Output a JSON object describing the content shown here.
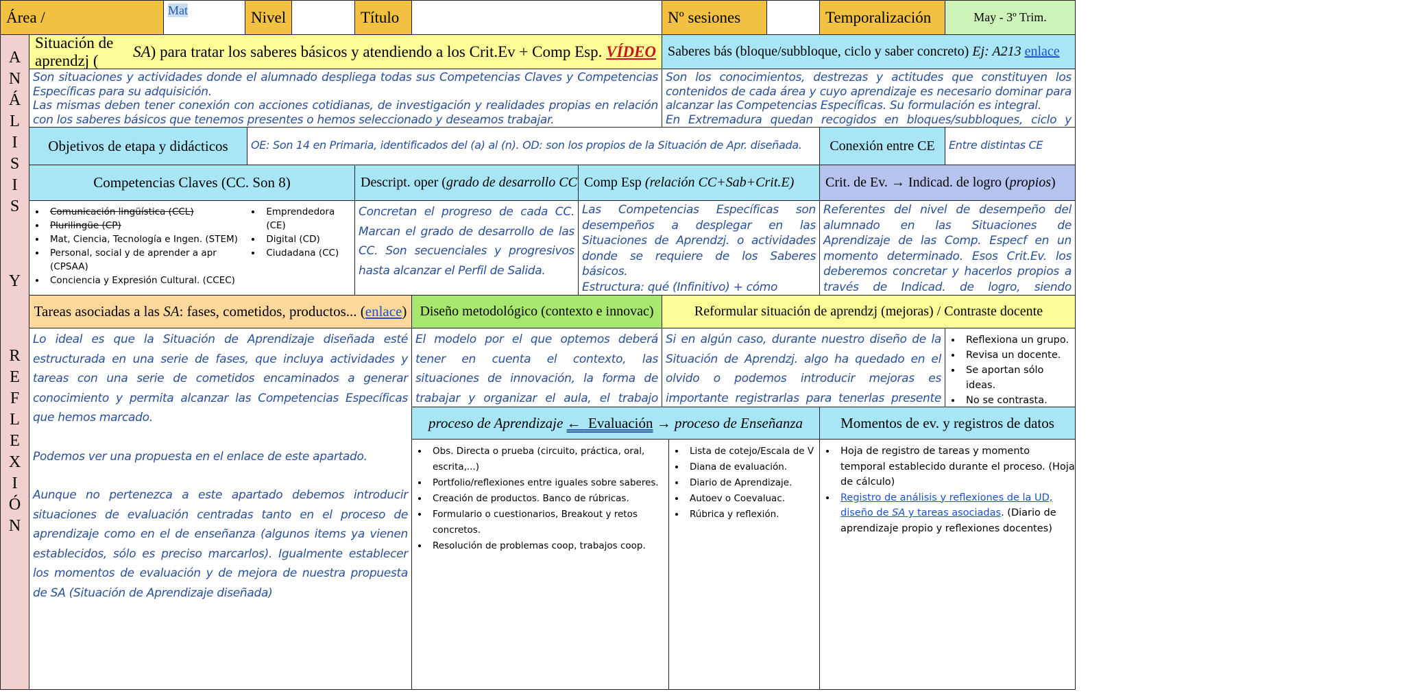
{
  "top": {
    "area": "Área /",
    "area_value": "Mat",
    "nivel": "Nivel",
    "nivel_value": "",
    "titulo": "Título",
    "titulo_value": "",
    "sesiones": "Nº sesiones",
    "sesiones_value": "",
    "temporalizacion": "Temporalización",
    "temporalizacion_value": "May - 3º Trim."
  },
  "side": {
    "analisis": [
      "A",
      "N",
      "Á",
      "L",
      "I",
      "S",
      "I",
      "S"
    ],
    "y": "Y",
    "reflexion": [
      "R",
      "E",
      "F",
      "L",
      "E",
      "X",
      "I",
      "Ó",
      "N"
    ]
  },
  "sa": {
    "title_a": "Situación de aprendzj (",
    "title_sa": "SA",
    "title_b": ") para tratar los saberes básicos y atendiendo a los Crit.Ev + Comp Esp. ",
    "video": "VÍDEO",
    "text": [
      "Son situaciones y actividades donde el alumnado despliega todas sus Competencias Claves y Competencias Específicas para su adquisición.",
      "Las mismas deben tener conexión con acciones cotidianas, de investigación y realidades propias en relación con los saberes básicos que tenemos presentes o hemos seleccionado y deseamos trabajar."
    ]
  },
  "saberes": {
    "title": "Saberes bás (bloque/subbloque, ciclo y saber concreto) ",
    "example": "Ej: A213",
    "link": "enlace",
    "text": [
      "Son los conocimientos, destrezas y actitudes que constituyen los contenidos de cada área y cuyo aprendizaje es necesario dominar para alcanzar las Competencias Específicas. Su formulación es integral.",
      "En Extremadura quedan recogidos en bloques/subbloques, ciclo y saber."
    ]
  },
  "objetivos": {
    "title": "Objetivos de etapa y didácticos",
    "text": "OE: Son 14 en Primaria, identificados del (a) al (n). OD: son los propios de la Situación de Apr. diseñada.",
    "conexion": "Conexión entre CE",
    "conexion_text": "Entre distintas CE"
  },
  "cc": {
    "title": "Competencias Claves (CC. Son 8)",
    "col1": [
      "Comunicación lingüística (CCL)",
      "Plurilingüe (CP)",
      "Mat, Ciencia, Tecnología e Ingen. (STEM)",
      "Personal, social y de aprender a apr (CPSAA)",
      "Conciencia y Expresión Cultural. (CCEC)"
    ],
    "col2": [
      "Emprendedora (CE)",
      "Digital (CD)",
      "Ciudadana (CC)"
    ]
  },
  "descript": {
    "title": "Descript. oper (",
    "title_i": "grado de desarrollo CC",
    "title_end": ")",
    "text": "Concretan el progreso de cada CC. Marcan el grado de desarrollo de las CC. Son secuenciales y progresivos hasta alcanzar el Perfil de Salida."
  },
  "compesp": {
    "title": "Comp Esp ",
    "title_i": "(relación CC+Sab+Crit.E)",
    "text": [
      "Las Competencias Específicas son desempeños a desplegar en las Situaciones de Aprendzj. o actividades donde se requiere de los Saberes básicos.",
      "Estructura: qué (Infinitivo) + cómo (gerundio) + para qué (para+infinitivo)"
    ]
  },
  "crit": {
    "title": "Crit. de Ev. → Indicad. de logro (",
    "title_i": "propios",
    "title_end": ")",
    "text": "Referentes del nivel de desempeño del alumnado en las Situaciones de Aprendizaje de las Comp. Especf en un momento determinado. Esos Crit.Ev. los deberemos concretar y hacerlos propios a través de Indicad. de logro, siendo redactados por nosotros mismos."
  },
  "tareas": {
    "title_a": "Tareas asociadas a las ",
    "title_sa": "SA",
    "title_b": ": fases, cometidos, productos... (",
    "link": "enlace",
    "title_end": ")",
    "text": [
      "Lo ideal es que la Situación de Aprendizaje diseñada esté estructurada en una serie de fases, que incluya actividades y tareas con una serie de cometidos encaminados a generar conocimiento y permita alcanzar las Competencias Específicas que hemos marcado.",
      "Podemos ver una propuesta en el enlace de este apartado.",
      "Aunque no pertenezca a este apartado debemos introducir situaciones de evaluación centradas tanto en el proceso de aprendizaje como en el de enseñanza (algunos items ya vienen establecidos, sólo es preciso marcarlos). Igualmente establecer los momentos de evaluación y de mejora de nuestra propuesta de SA (Situación de Aprendizaje diseñada)"
    ]
  },
  "diseno": {
    "title": "Diseño metodológico (contexto e innovac)",
    "text": "El modelo por el que optemos deberá tener en cuenta el contexto, las situaciones de innovación, la forma de trabajar y organizar el aula, el trabajo competencial que queramos instaurar, entre otros aspectos."
  },
  "reformular": {
    "title": "Reformular situación de aprendzj (mejoras) / Contraste docente",
    "text": "Si en algún caso, durante nuestro diseño de la Situación de Aprendzj. algo ha quedado en el olvido o podemos introducir mejoras es importante registrarlas para tenerlas presente cuando queramos llevarla a cabo nuevamente.",
    "options": [
      "Reflexiona un grupo.",
      "Revisa un docente.",
      "Se aportan sólo ideas.",
      "No se contrasta."
    ]
  },
  "evaluacion": {
    "left": "proceso de Aprendizaje ",
    "arrow_l": "← ",
    "center": " Evaluación",
    "arrow_r": " → ",
    "right": "proceso de Enseñanza",
    "col1": [
      "Obs. Directa o prueba (circuito, práctica, oral, escrita,...)",
      "Portfolio/reflexiones entre iguales sobre saberes.",
      "Creación de productos. Banco de rúbricas.",
      "Formulario o cuestionarios, Breakout y retos concretos.",
      "Resolución de problemas coop, trabajos coop."
    ],
    "col2": [
      "Lista de cotejo/Escala de V",
      "Diana de evaluación.",
      "Diario de Aprendizaje.",
      "Autoev o Coevaluac.",
      "Rúbrica y reflexión."
    ]
  },
  "momentos": {
    "title": "Momentos de ev. y registros de datos",
    "item1": "Hoja de registro de tareas y momento temporal establecido durante el proceso. (Hoja de cálculo)",
    "item2_link_a": "Registro de análisis y reflexiones de la UD, diseño de ",
    "item2_link_sa": "SA",
    "item2_link_b": " y tareas asociadas",
    "item2_rest": ". (Diario de aprendizaje propio y reflexiones docentes)"
  }
}
